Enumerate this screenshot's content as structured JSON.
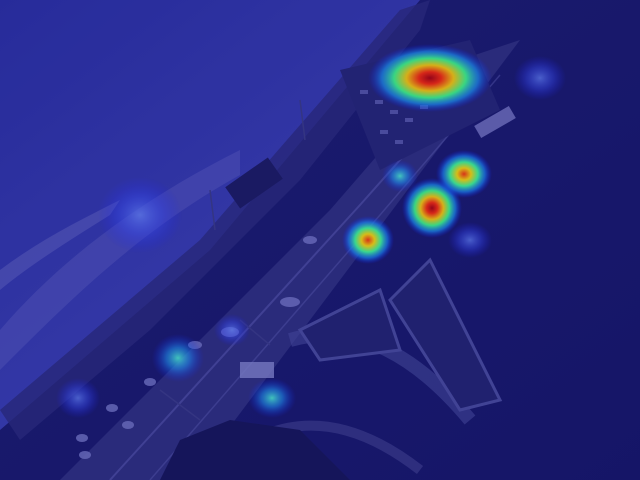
{
  "image": {
    "description_tags": [
      "aerial-highway-scene",
      "heatmap-overlay"
    ],
    "overlay_colormap": "jet",
    "tint_color": "#1a1a8c",
    "sky_color": "#2b2f9a",
    "road_color": "#2c2c6e",
    "hotspot_intensities": [
      1.0,
      0.85,
      0.8,
      0.7,
      0.35,
      0.35,
      0.3,
      0.3,
      0.25,
      0.2
    ]
  }
}
